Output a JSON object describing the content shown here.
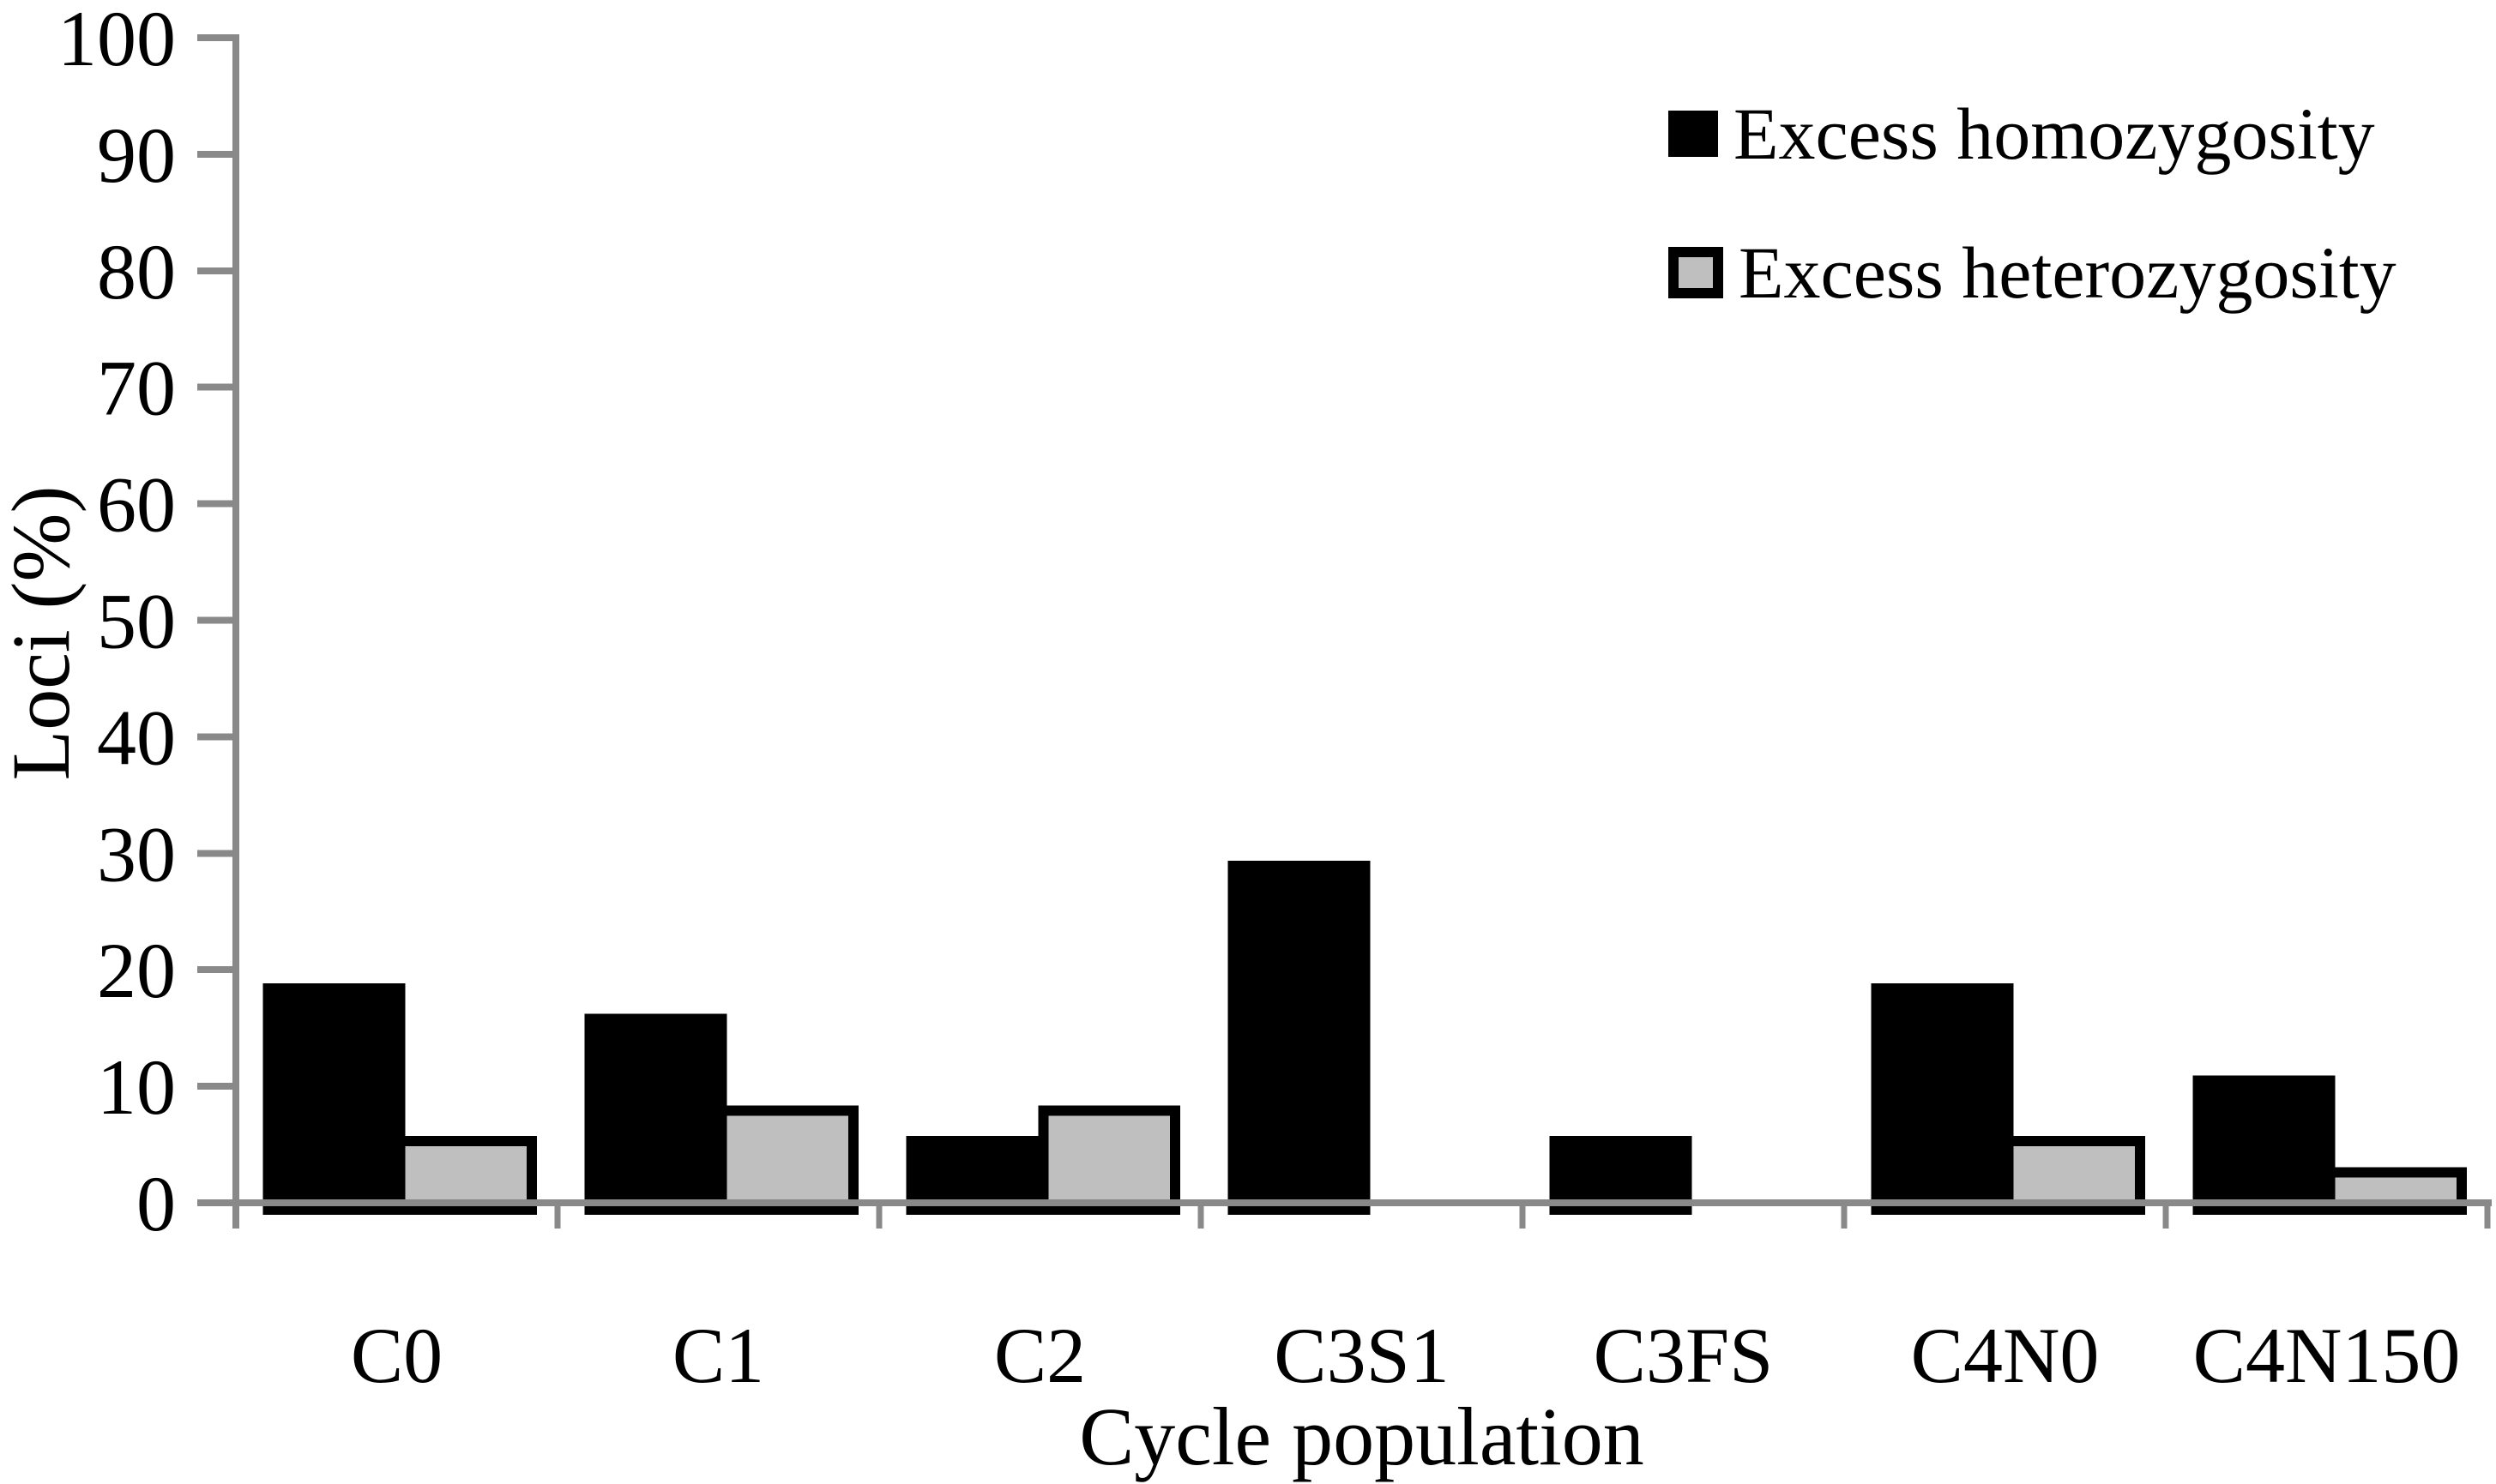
{
  "chart_data": {
    "type": "bar",
    "title": "",
    "categories": [
      "C0",
      "C1",
      "C2",
      "C3S1",
      "C3FS",
      "C4N0",
      "C4N150"
    ],
    "series": [
      {
        "name": "Excess homozygosity",
        "color": "#000000",
        "values": [
          18.4,
          15.8,
          5.3,
          28.9,
          5.3,
          18.4,
          10.5
        ]
      },
      {
        "name": "Excess heterozygosity",
        "color": "#bfbfbf",
        "values": [
          5.3,
          7.9,
          7.9,
          0,
          0,
          5.3,
          2.6
        ]
      }
    ],
    "xlabel": "Cycle population",
    "ylabel": "Loci (%)",
    "ylim": [
      0,
      100
    ],
    "ytick_step": 10,
    "yticks": [
      "0",
      "10",
      "20",
      "30",
      "40",
      "50",
      "60",
      "70",
      "80",
      "90",
      "100"
    ],
    "grid": false,
    "legend_position": "top-right",
    "axis_color": "#898989",
    "bar_border_color": "#000000",
    "text_color": "#000000"
  }
}
